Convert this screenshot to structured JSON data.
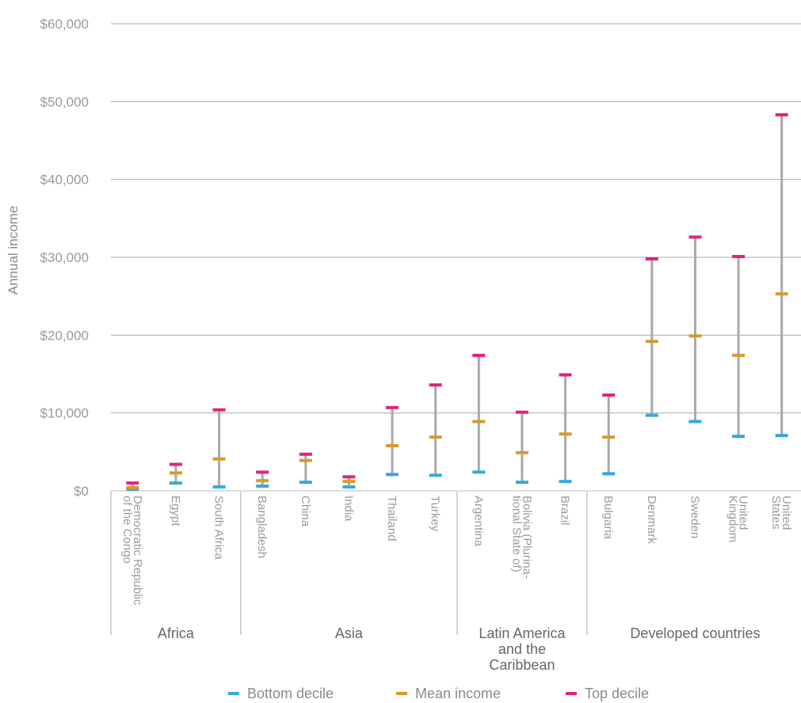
{
  "chart_data": {
    "type": "range",
    "ylabel": "Annual income",
    "ylim": [
      0,
      60000
    ],
    "yticks": [
      "$0",
      "$10,000",
      "$20,000",
      "$30,000",
      "$40,000",
      "$50,000",
      "$60,000"
    ],
    "ytick_values": [
      0,
      10000,
      20000,
      30000,
      40000,
      50000,
      60000
    ],
    "grid": true,
    "categories": [
      {
        "label": [
          "Democratic Republic",
          "of the Congo"
        ],
        "group": 0
      },
      {
        "label": [
          "Egypt"
        ],
        "group": 0
      },
      {
        "label": [
          "South Africa"
        ],
        "group": 0
      },
      {
        "label": [
          "Bangladesh"
        ],
        "group": 1
      },
      {
        "label": [
          "China"
        ],
        "group": 1
      },
      {
        "label": [
          "India"
        ],
        "group": 1
      },
      {
        "label": [
          "Thailand"
        ],
        "group": 1
      },
      {
        "label": [
          "Turkey"
        ],
        "group": 1
      },
      {
        "label": [
          "Argentina"
        ],
        "group": 2
      },
      {
        "label": [
          "Bolivia (Plurina-",
          "tional State of)"
        ],
        "group": 2
      },
      {
        "label": [
          "Brazil"
        ],
        "group": 2
      },
      {
        "label": [
          "Bulgaria"
        ],
        "group": 3
      },
      {
        "label": [
          "Denmark"
        ],
        "group": 3
      },
      {
        "label": [
          "Sweden"
        ],
        "group": 3
      },
      {
        "label": [
          "United",
          "Kingdom"
        ],
        "group": 3
      },
      {
        "label": [
          "United",
          "States"
        ],
        "group": 3
      }
    ],
    "groups": [
      {
        "label": [
          "Africa"
        ]
      },
      {
        "label": [
          "Asia"
        ]
      },
      {
        "label": [
          "Latin America",
          "and the",
          "Caribbean"
        ]
      },
      {
        "label": [
          "Developed countries"
        ]
      }
    ],
    "series": [
      {
        "name": "Bottom decile",
        "color": "#35a8dd",
        "values": [
          200,
          1000,
          500,
          600,
          1100,
          500,
          2100,
          2000,
          2400,
          1100,
          1200,
          2200,
          9700,
          8900,
          7000,
          7100
        ]
      },
      {
        "name": "Mean income",
        "color": "#d69a2e",
        "values": [
          400,
          2300,
          4100,
          1300,
          3900,
          1200,
          5800,
          6900,
          8900,
          4900,
          7300,
          6900,
          19200,
          19900,
          17400,
          25300
        ]
      },
      {
        "name": "Top decile",
        "color": "#e0237f",
        "values": [
          1000,
          3400,
          10400,
          2400,
          4700,
          1800,
          10700,
          13600,
          17400,
          10100,
          14900,
          12300,
          29800,
          32600,
          30100,
          48300
        ]
      }
    ],
    "legend_position": "bottom"
  }
}
